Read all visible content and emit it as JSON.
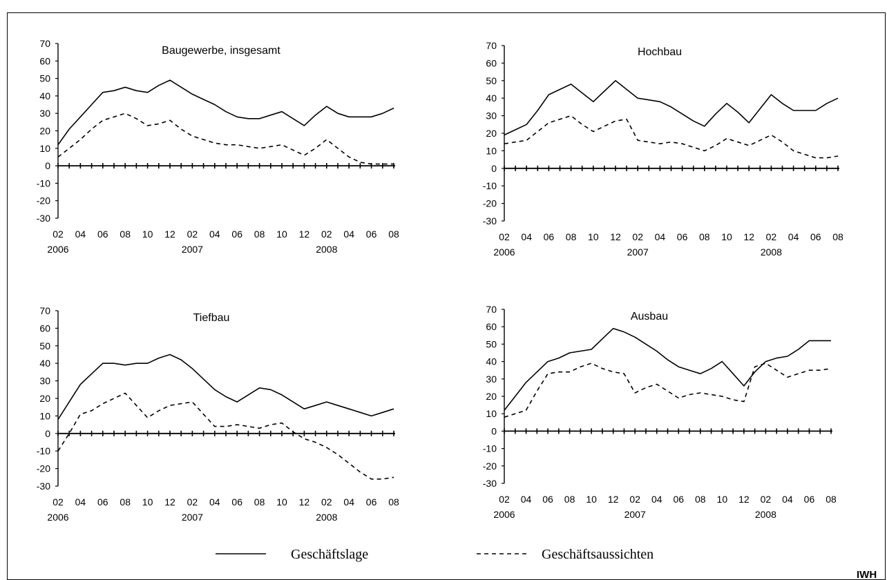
{
  "chart_data": [
    {
      "type": "line",
      "title": "Baugewerbe, insgesamt",
      "ylim": [
        -30,
        70
      ],
      "yticks": [
        70,
        60,
        50,
        40,
        30,
        20,
        10,
        0,
        -10,
        -20,
        -30
      ],
      "x_tick_labels": [
        "02",
        "04",
        "06",
        "08",
        "10",
        "12",
        "02",
        "04",
        "06",
        "08",
        "10",
        "12",
        "02",
        "04",
        "06",
        "08"
      ],
      "year_labels": [
        "2006",
        "2007",
        "2008"
      ],
      "series": [
        {
          "name": "Geschäftslage",
          "values": [
            12,
            21,
            28,
            35,
            42,
            43,
            45,
            43,
            42,
            46,
            49,
            45,
            41,
            38,
            35,
            31,
            28,
            27,
            27,
            29,
            31,
            27,
            23,
            29,
            34,
            30,
            28,
            28,
            28,
            30,
            33
          ]
        },
        {
          "name": "Geschäftsaussichten",
          "values": [
            5,
            10,
            15,
            21,
            26,
            28,
            30,
            27,
            23,
            24,
            26,
            21,
            17,
            15,
            13,
            12,
            12,
            11,
            10,
            11,
            12,
            9,
            6,
            10,
            15,
            10,
            5,
            2,
            1,
            1,
            1
          ]
        }
      ]
    },
    {
      "type": "line",
      "title": "Hochbau",
      "ylim": [
        -30,
        70
      ],
      "yticks": [
        70,
        60,
        50,
        40,
        30,
        20,
        10,
        0,
        -10,
        -20,
        -30
      ],
      "x_tick_labels": [
        "02",
        "04",
        "06",
        "08",
        "10",
        "12",
        "02",
        "04",
        "06",
        "08",
        "10",
        "12",
        "02",
        "04",
        "06",
        "08"
      ],
      "year_labels": [
        "2006",
        "2007",
        "2008"
      ],
      "series": [
        {
          "name": "Geschäftslage",
          "values": [
            19,
            22,
            25,
            33,
            42,
            45,
            48,
            43,
            38,
            44,
            50,
            45,
            40,
            39,
            38,
            35,
            31,
            27,
            24,
            31,
            37,
            32,
            26,
            34,
            42,
            37,
            33,
            33,
            33,
            37,
            40
          ]
        },
        {
          "name": "Geschäftsaussichten",
          "values": [
            14,
            15,
            16,
            21,
            26,
            28,
            30,
            25,
            21,
            24,
            27,
            28,
            16,
            15,
            14,
            15,
            14,
            12,
            10,
            13,
            17,
            15,
            13,
            16,
            19,
            15,
            10,
            8,
            6,
            6,
            7
          ]
        }
      ]
    },
    {
      "type": "line",
      "title": "Tiefbau",
      "ylim": [
        -30,
        70
      ],
      "yticks": [
        70,
        60,
        50,
        40,
        30,
        20,
        10,
        0,
        -10,
        -20,
        -30
      ],
      "x_tick_labels": [
        "02",
        "04",
        "06",
        "08",
        "10",
        "12",
        "02",
        "04",
        "06",
        "08",
        "10",
        "12",
        "02",
        "04",
        "06",
        "08"
      ],
      "year_labels": [
        "2006",
        "2007",
        "2008"
      ],
      "series": [
        {
          "name": "Geschäftslage",
          "values": [
            8,
            18,
            28,
            34,
            40,
            40,
            39,
            40,
            40,
            43,
            45,
            42,
            37,
            31,
            25,
            21,
            18,
            22,
            26,
            25,
            22,
            18,
            14,
            16,
            18,
            16,
            14,
            12,
            10,
            12,
            14
          ]
        },
        {
          "name": "Geschäftsaussichten",
          "values": [
            -10,
            0,
            11,
            13,
            17,
            20,
            23,
            16,
            9,
            13,
            16,
            17,
            18,
            11,
            4,
            4,
            5,
            4,
            3,
            5,
            6,
            1,
            -3,
            -5,
            -8,
            -12,
            -17,
            -22,
            -26,
            -26,
            -25
          ]
        }
      ]
    },
    {
      "type": "line",
      "title": "Ausbau",
      "ylim": [
        -30,
        70
      ],
      "yticks": [
        70,
        60,
        50,
        40,
        30,
        20,
        10,
        0,
        -10,
        -20,
        -30
      ],
      "x_tick_labels": [
        "02",
        "04",
        "06",
        "08",
        "10",
        "12",
        "02",
        "04",
        "06",
        "08",
        "10",
        "12",
        "02",
        "04",
        "06",
        "08"
      ],
      "year_labels": [
        "2006",
        "2007",
        "2008"
      ],
      "series": [
        {
          "name": "Geschäftslage",
          "values": [
            12,
            20,
            28,
            34,
            40,
            42,
            45,
            46,
            47,
            53,
            59,
            57,
            54,
            50,
            46,
            41,
            37,
            35,
            33,
            36,
            40,
            33,
            26,
            34,
            40,
            42,
            43,
            47,
            52,
            52,
            52
          ]
        },
        {
          "name": "Geschäftsaussichten",
          "values": [
            8,
            10,
            12,
            23,
            33,
            34,
            34,
            37,
            39,
            36,
            34,
            33,
            22,
            25,
            27,
            23,
            19,
            21,
            22,
            21,
            20,
            18,
            17,
            37,
            39,
            35,
            31,
            33,
            35,
            35,
            36
          ]
        }
      ]
    }
  ],
  "legend": {
    "solid_label": "Geschäftslage",
    "dashed_label": "Geschäftsaussichten"
  },
  "source": "IWH"
}
